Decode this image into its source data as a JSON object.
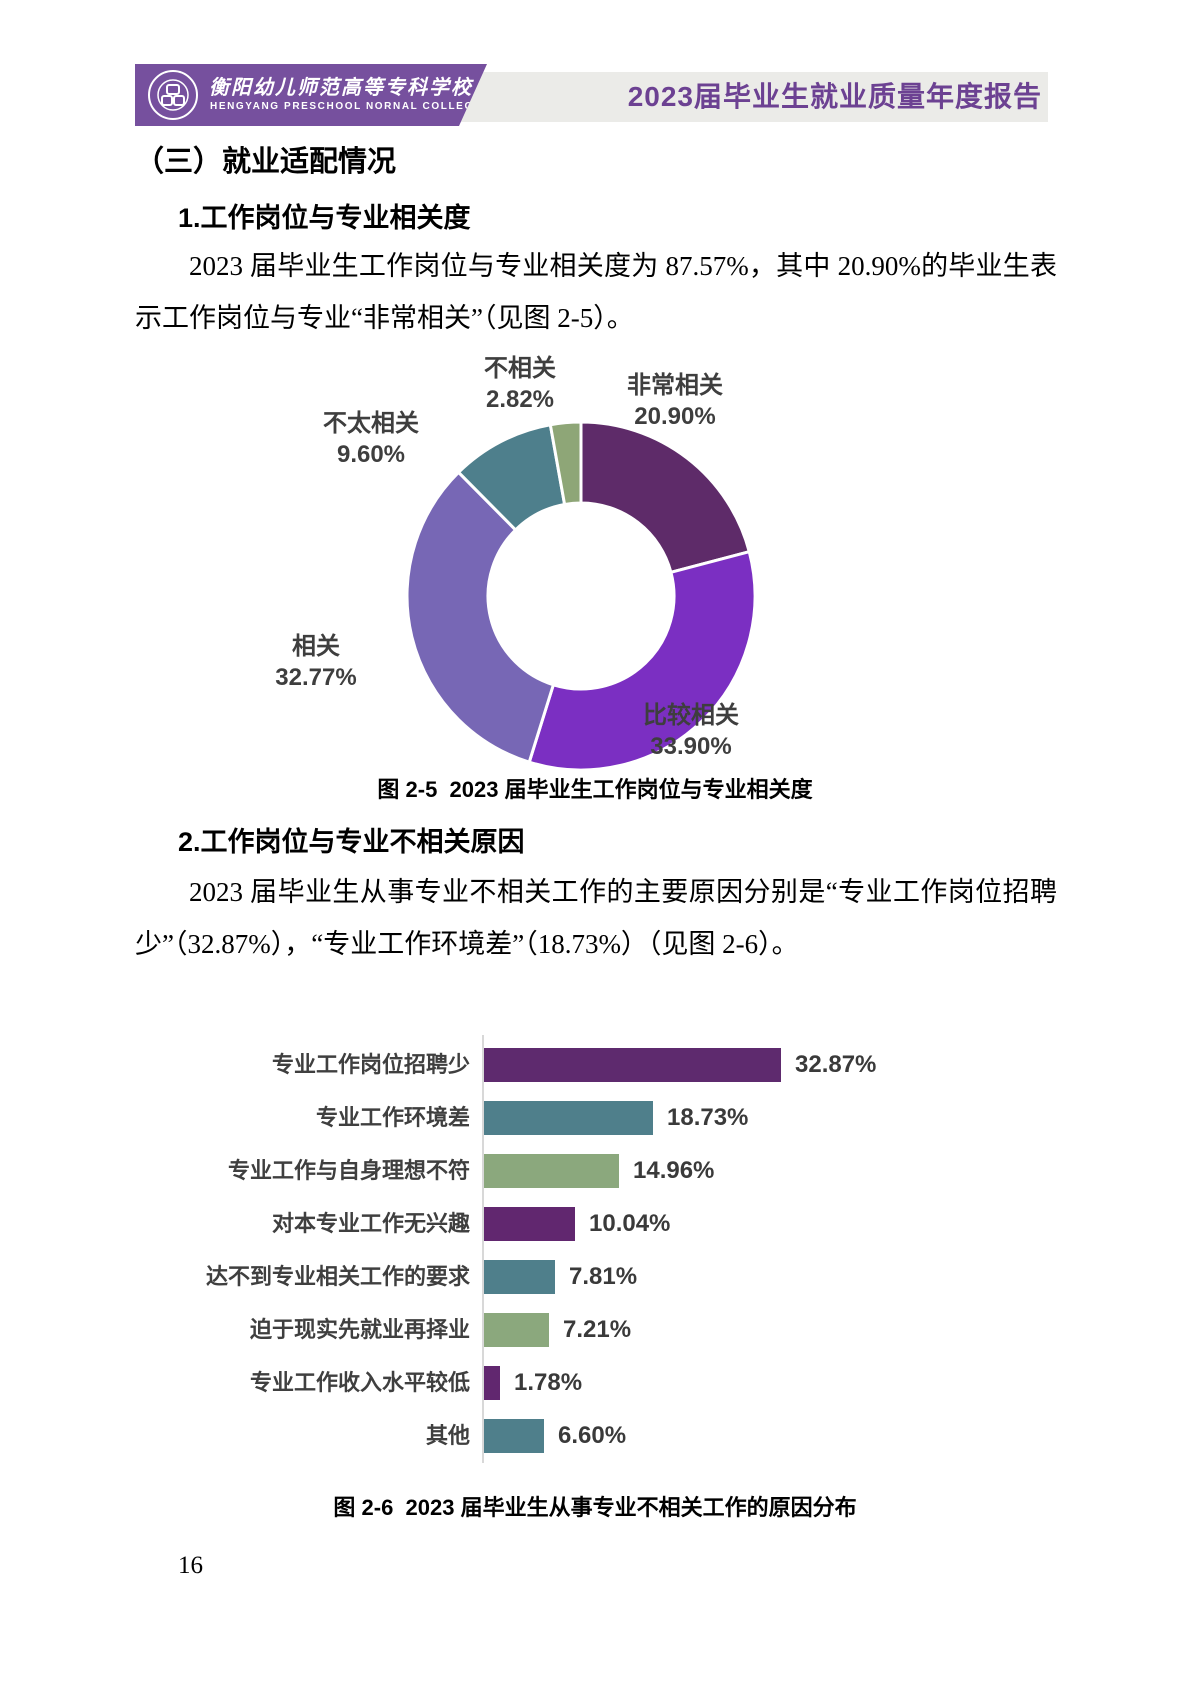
{
  "page_number": "16",
  "header": {
    "school_name_zh": "衡阳幼儿师范高等专科学校",
    "school_name_en": "HENGYANG PRESCHOOL NORNAL COLLEGE",
    "report_title": "2023届毕业生就业质量年度报告",
    "banner_color": "#76509E",
    "bar_color": "#EBEBE8",
    "title_color": "#6C4192"
  },
  "content": {
    "section_heading": "（三）就业适配情况",
    "sub1_heading": "1.工作岗位与专业相关度",
    "para1": "2023 届毕业生工作岗位与专业相关度为 87.57%，其中 20.90%的毕业生表示工作岗位与专业“非常相关”（见图 2-5）。",
    "sub2_heading": "2.工作岗位与专业不相关原因",
    "para2": "2023 届毕业生从事专业不相关工作的主要原因分别是“专业工作岗位招聘少”（32.87%），“专业工作环境差”（18.73%）（见图 2-6）。"
  },
  "chart_data": [
    {
      "type": "pie",
      "subtype": "donut",
      "title": "图 2-5  2023 届毕业生工作岗位与专业相关度",
      "labels": [
        "非常相关",
        "比较相关",
        "相关",
        "不太相关",
        "不相关"
      ],
      "values": [
        20.9,
        33.9,
        32.77,
        9.6,
        2.82
      ],
      "pct_labels": [
        "20.90%",
        "33.90%",
        "32.77%",
        "9.60%",
        "2.82%"
      ],
      "colors": [
        "#5E2B69",
        "#7B2FC2",
        "#7767B5",
        "#4E7F8C",
        "#8EA677"
      ],
      "start_angle_deg": 0,
      "direction": "clockwise",
      "label_color": "#3E3E3E",
      "legend_position": "outside-labels"
    },
    {
      "type": "bar",
      "orientation": "horizontal",
      "title": "图 2-6  2023 届毕业生从事专业不相关工作的原因分布",
      "categories": [
        "专业工作岗位招聘少",
        "专业工作环境差",
        "专业工作与自身理想不符",
        "对本专业工作无兴趣",
        "达不到专业相关工作的要求",
        "迫于现实先就业再择业",
        "专业工作收入水平较低",
        "其他"
      ],
      "values": [
        32.87,
        18.73,
        14.96,
        10.04,
        7.81,
        7.21,
        1.78,
        6.6
      ],
      "value_labels": [
        "32.87%",
        "18.73%",
        "14.96%",
        "10.04%",
        "7.81%",
        "7.21%",
        "1.78%",
        "6.60%"
      ],
      "bar_colors": [
        "#5E2A6E",
        "#4F7F8B",
        "#8BA87D",
        "#61276F",
        "#4F7F8B",
        "#8BA87D",
        "#61276F",
        "#4F7F8B"
      ],
      "xlim": [
        0,
        35
      ],
      "grid": false,
      "value_label_color": "#3A3A3A",
      "category_label_color": "#3F3F3F"
    }
  ]
}
